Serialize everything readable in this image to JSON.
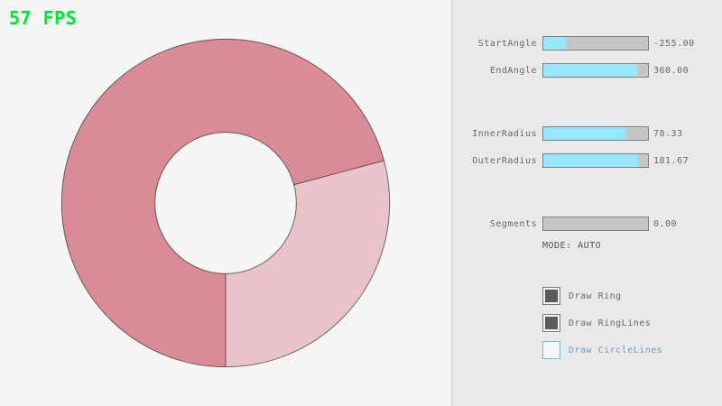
{
  "app": {
    "fps_label": "57 FPS"
  },
  "ring": {
    "color_overlap": "#d98c96",
    "color_single": "#e8c4ca",
    "outline": "rgba(0,0,0,0.55)"
  },
  "controls": {
    "sliders": [
      {
        "label": "StartAngle",
        "value": "-255.00",
        "fill_pct": 21.7
      },
      {
        "label": "EndAngle",
        "value": "360.00",
        "fill_pct": 90.0
      },
      {
        "label": "InnerRadius",
        "value": "78.33",
        "fill_pct": 78.3
      },
      {
        "label": "OuterRadius",
        "value": "181.67",
        "fill_pct": 90.8
      },
      {
        "label": "Segments",
        "value": "0.00",
        "fill_pct": 0
      }
    ],
    "mode_text": "MODE: AUTO",
    "checkboxes": [
      {
        "label": "Draw Ring",
        "checked": true
      },
      {
        "label": "Draw RingLines",
        "checked": true
      },
      {
        "label": "Draw CircleLines",
        "checked": false
      }
    ]
  },
  "theme": {
    "fps_color": "#00e430",
    "slider_fill": "#97e8ff",
    "slider_track": "#c6c6c6",
    "panel_bg": "#e9e9e9",
    "text_gray": "#686868",
    "check_fill": "#5b5b5b",
    "focus_blue": "#6c9bbc"
  }
}
